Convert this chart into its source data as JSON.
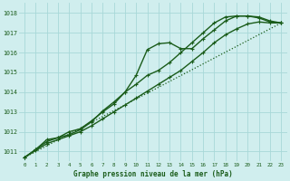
{
  "bg_color": "#d0eeee",
  "grid_color": "#a8d8d8",
  "line_color": "#1a5c1a",
  "title": "Graphe pression niveau de la mer (hPa)",
  "xlim": [
    -0.5,
    23.5
  ],
  "ylim": [
    1010.5,
    1018.5
  ],
  "xticks": [
    0,
    1,
    2,
    3,
    4,
    5,
    6,
    7,
    8,
    9,
    10,
    11,
    12,
    13,
    14,
    15,
    16,
    17,
    18,
    19,
    20,
    21,
    22,
    23
  ],
  "yticks": [
    1011,
    1012,
    1013,
    1014,
    1015,
    1016,
    1017,
    1018
  ],
  "series": [
    {
      "x": [
        0,
        23
      ],
      "y": [
        1010.7,
        1017.5
      ],
      "style": "dotted",
      "marker": null,
      "lw": 0.9
    },
    {
      "x": [
        0,
        1,
        2,
        3,
        4,
        5,
        6,
        7,
        8,
        9,
        10,
        11,
        12,
        13,
        14,
        15,
        16,
        17,
        18,
        19,
        20,
        21,
        22,
        23
      ],
      "y": [
        1010.7,
        1011.1,
        1011.6,
        1011.7,
        1012.0,
        1012.15,
        1012.55,
        1013.0,
        1013.4,
        1014.0,
        1014.85,
        1016.15,
        1016.45,
        1016.5,
        1016.2,
        1016.2,
        1016.7,
        1017.15,
        1017.6,
        1017.85,
        1017.85,
        1017.75,
        1017.55,
        1017.5
      ],
      "style": "solid",
      "marker": "+",
      "lw": 1.0
    },
    {
      "x": [
        0,
        1,
        2,
        3,
        4,
        5,
        6,
        7,
        8,
        9,
        10,
        11,
        12,
        13,
        14,
        15,
        16,
        17,
        18,
        19,
        20,
        21,
        22,
        23
      ],
      "y": [
        1010.7,
        1011.1,
        1011.5,
        1011.7,
        1011.85,
        1012.1,
        1012.5,
        1013.05,
        1013.5,
        1014.0,
        1014.4,
        1014.85,
        1015.1,
        1015.5,
        1016.0,
        1016.5,
        1017.0,
        1017.5,
        1017.8,
        1017.85,
        1017.85,
        1017.8,
        1017.6,
        1017.5
      ],
      "style": "solid",
      "marker": "+",
      "lw": 1.0
    },
    {
      "x": [
        0,
        1,
        2,
        3,
        4,
        5,
        6,
        7,
        8,
        9,
        10,
        11,
        12,
        13,
        14,
        15,
        16,
        17,
        18,
        19,
        20,
        21,
        22,
        23
      ],
      "y": [
        1010.7,
        1011.05,
        1011.4,
        1011.6,
        1011.8,
        1012.0,
        1012.3,
        1012.65,
        1013.0,
        1013.35,
        1013.7,
        1014.05,
        1014.4,
        1014.75,
        1015.1,
        1015.55,
        1016.0,
        1016.5,
        1016.9,
        1017.2,
        1017.45,
        1017.55,
        1017.5,
        1017.5
      ],
      "style": "solid",
      "marker": "+",
      "lw": 1.0
    }
  ]
}
